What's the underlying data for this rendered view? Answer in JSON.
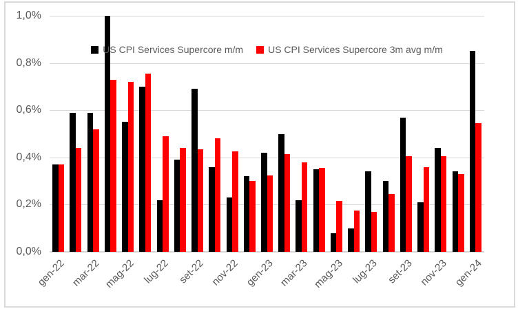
{
  "chart_data": {
    "type": "bar",
    "title": "",
    "xlabel": "",
    "ylabel": "",
    "ylim": [
      0,
      1.0
    ],
    "grid": true,
    "legend_position": "top-inside-centered",
    "y_ticks_top_to_bottom": [
      "1,0%",
      "0,8%",
      "0,6%",
      "0,4%",
      "0,2%",
      "0,0%"
    ],
    "categories": [
      "gen-22",
      "feb-22",
      "mar-22",
      "apr-22",
      "mag-22",
      "giu-22",
      "lug-22",
      "ago-22",
      "set-22",
      "ott-22",
      "nov-22",
      "dic-22",
      "gen-23",
      "feb-23",
      "mar-23",
      "apr-23",
      "mag-23",
      "giu-23",
      "lug-23",
      "ago-23",
      "set-23",
      "ott-23",
      "nov-23",
      "dic-23",
      "gen-24"
    ],
    "x_tick_labels": [
      "gen-22",
      "mar-22",
      "mag-22",
      "lug-22",
      "set-22",
      "nov-22",
      "gen-23",
      "mar-23",
      "mag-23",
      "lug-23",
      "set-23",
      "nov-23",
      "gen-24"
    ],
    "x_tick_every_n_months": 2,
    "series": [
      {
        "name": "US CPI Services Supercore m/m",
        "color": "#000000",
        "values": [
          0.37,
          0.59,
          0.59,
          1.0,
          0.55,
          0.7,
          0.22,
          0.39,
          0.69,
          0.36,
          0.23,
          0.32,
          0.42,
          0.5,
          0.22,
          0.35,
          0.08,
          0.1,
          0.34,
          0.3,
          0.57,
          0.21,
          0.44,
          0.34,
          0.85
        ]
      },
      {
        "name": "US CPI Services Supercore 3m avg m/m",
        "color": "#ff0000",
        "values": [
          0.37,
          0.44,
          0.52,
          0.73,
          0.72,
          0.755,
          0.49,
          0.44,
          0.435,
          0.48,
          0.425,
          0.3,
          0.325,
          0.415,
          0.38,
          0.355,
          0.215,
          0.175,
          0.17,
          0.245,
          0.405,
          0.36,
          0.405,
          0.33,
          0.545
        ]
      }
    ],
    "colors": {
      "gridline": "#d9d9d9",
      "axis_line": "#d5d5d5",
      "tick_text": "#595959",
      "frame_border": "#d9d9d9",
      "background": "#ffffff"
    }
  }
}
